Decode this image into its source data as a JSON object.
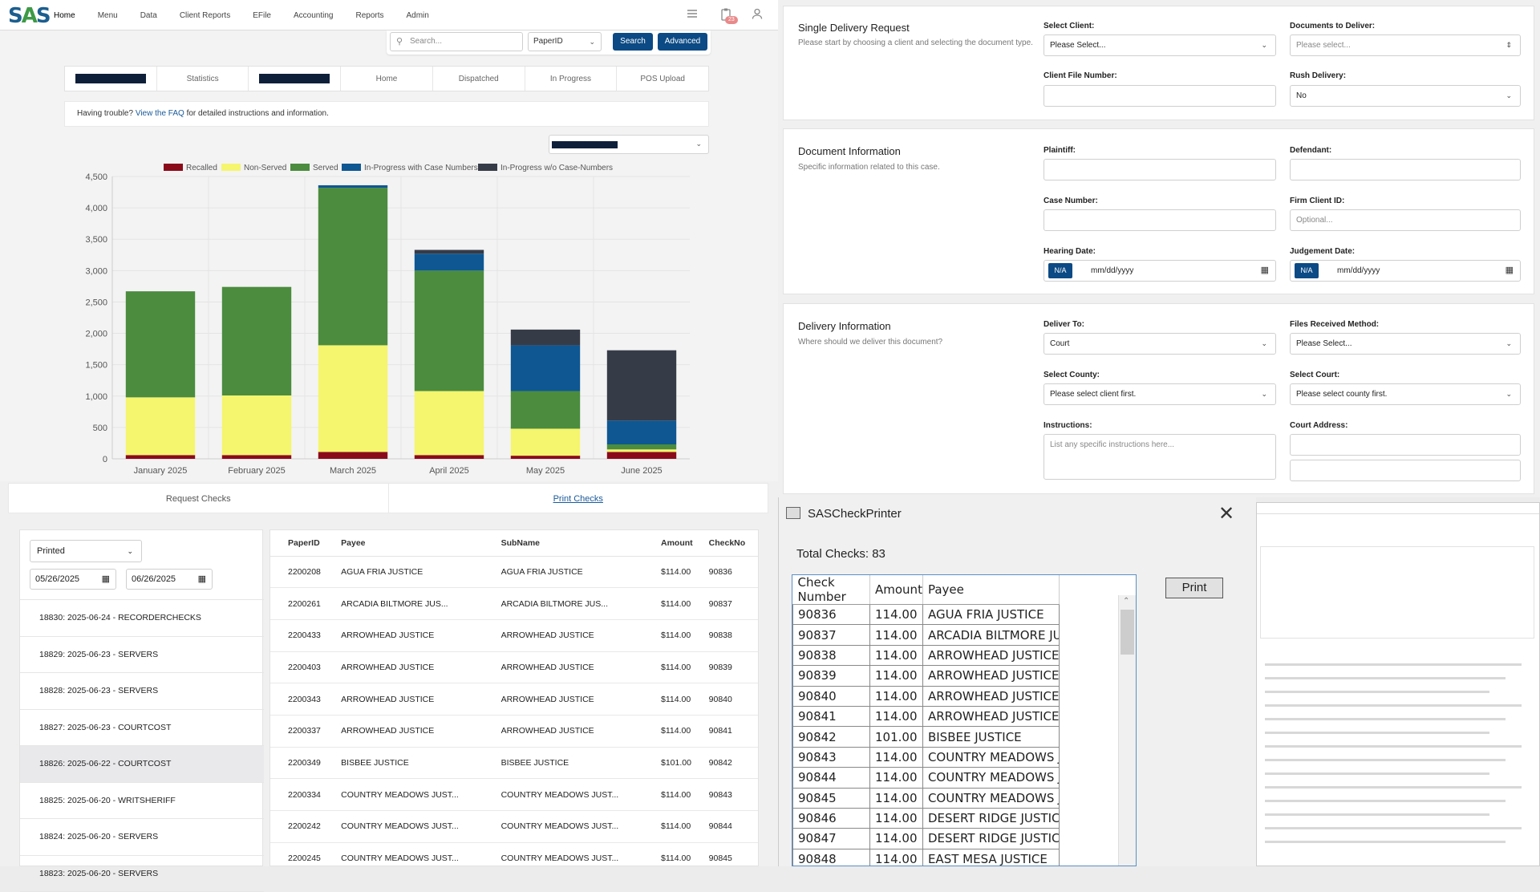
{
  "nav": {
    "logo_left": "S",
    "logo_mid": "A",
    "logo_right": "S",
    "items": [
      "Home",
      "Menu",
      "Data",
      "Client Reports",
      "EFile",
      "Accounting",
      "Reports",
      "Admin"
    ],
    "badge": "23"
  },
  "search": {
    "placeholder": "Search...",
    "field": "PaperID",
    "search_btn": "Search",
    "advanced_btn": "Advanced"
  },
  "tabs": [
    "Statistics",
    "Home",
    "Dispatched",
    "In Progress",
    "POS Upload"
  ],
  "help": {
    "prefix": "Having trouble?",
    "link": "View the FAQ",
    "suffix": "for detailed instructions and information."
  },
  "chart_data": {
    "type": "bar",
    "stacked": true,
    "categories": [
      "January 2025",
      "February 2025",
      "March 2025",
      "April 2025",
      "May 2025",
      "June 2025"
    ],
    "series": [
      {
        "name": "Recalled",
        "color": "#8b0a1a",
        "values": [
          60,
          60,
          110,
          60,
          50,
          110
        ]
      },
      {
        "name": "Non-Served",
        "color": "#f5f56e",
        "values": [
          920,
          950,
          1700,
          1020,
          430,
          40
        ]
      },
      {
        "name": "Served",
        "color": "#4b8c3e",
        "values": [
          1690,
          1730,
          2510,
          1920,
          600,
          80
        ]
      },
      {
        "name": "In-Progress with Case Numbers",
        "color": "#0e5793",
        "values": [
          0,
          0,
          40,
          270,
          730,
          380
        ]
      },
      {
        "name": "In-Progress w/o Case-Numbers",
        "color": "#363b48",
        "values": [
          0,
          0,
          0,
          60,
          250,
          1120
        ]
      }
    ],
    "yticks": [
      "0",
      "500",
      "1,000",
      "1,500",
      "2,000",
      "2,500",
      "3,000",
      "3,500",
      "4,000",
      "4,500"
    ],
    "ylim": [
      0,
      4500
    ],
    "legend": "top"
  },
  "check_tabs": {
    "request": "Request Checks",
    "print": "Print Checks"
  },
  "batch": {
    "filter": "Printed",
    "date_from": "05/26/2025",
    "date_to": "06/26/2025",
    "items": [
      "18830: 2025-06-24 - RECORDERCHECKS",
      "18829: 2025-06-23 - SERVERS",
      "18828: 2025-06-23 - SERVERS",
      "18827: 2025-06-23 - COURTCOST",
      "18826: 2025-06-22 - COURTCOST",
      "18825: 2025-06-20 - WRITSHERIFF",
      "18824: 2025-06-20 - SERVERS",
      "18823: 2025-06-20 - SERVERS"
    ]
  },
  "checks_table": {
    "headers": [
      "PaperID",
      "Payee",
      "SubName",
      "Amount",
      "CheckNo"
    ],
    "rows": [
      [
        "2200208",
        "AGUA FRIA JUSTICE",
        "AGUA FRIA JUSTICE",
        "$114.00",
        "90836"
      ],
      [
        "2200261",
        "ARCADIA BILTMORE JUS...",
        "ARCADIA BILTMORE JUS...",
        "$114.00",
        "90837"
      ],
      [
        "2200433",
        "ARROWHEAD JUSTICE",
        "ARROWHEAD JUSTICE",
        "$114.00",
        "90838"
      ],
      [
        "2200403",
        "ARROWHEAD JUSTICE",
        "ARROWHEAD JUSTICE",
        "$114.00",
        "90839"
      ],
      [
        "2200343",
        "ARROWHEAD JUSTICE",
        "ARROWHEAD JUSTICE",
        "$114.00",
        "90840"
      ],
      [
        "2200337",
        "ARROWHEAD JUSTICE",
        "ARROWHEAD JUSTICE",
        "$114.00",
        "90841"
      ],
      [
        "2200349",
        "BISBEE JUSTICE",
        "BISBEE JUSTICE",
        "$101.00",
        "90842"
      ],
      [
        "2200334",
        "COUNTRY MEADOWS JUST...",
        "COUNTRY MEADOWS JUST...",
        "$114.00",
        "90843"
      ],
      [
        "2200242",
        "COUNTRY MEADOWS JUST...",
        "COUNTRY MEADOWS JUST...",
        "$114.00",
        "90844"
      ],
      [
        "2200245",
        "COUNTRY MEADOWS JUST...",
        "COUNTRY MEADOWS JUST...",
        "$114.00",
        "90845"
      ]
    ]
  },
  "delivery": {
    "single": {
      "title": "Single Delivery Request",
      "subtitle": "Please start by choosing a client and selecting the document type.",
      "select_client_label": "Select Client:",
      "select_client_value": "Please Select...",
      "docs_label": "Documents to Deliver:",
      "docs_value": "Please select...",
      "file_no_label": "Client File Number:",
      "rush_label": "Rush Delivery:",
      "rush_value": "No"
    },
    "document": {
      "title": "Document Information",
      "subtitle": "Specific information related to this case.",
      "plaintiff_label": "Plaintiff:",
      "defendant_label": "Defendant:",
      "case_label": "Case Number:",
      "firm_label": "Firm Client ID:",
      "firm_placeholder": "Optional...",
      "hearing_label": "Hearing Date:",
      "judgement_label": "Judgement Date:",
      "na": "N/A",
      "date_placeholder": "mm/dd/yyyy"
    },
    "info": {
      "title": "Delivery Information",
      "subtitle": "Where should we deliver this document?",
      "deliver_to_label": "Deliver To:",
      "deliver_to_value": "Court",
      "files_label": "Files Received Method:",
      "files_value": "Please Select...",
      "county_label": "Select County:",
      "county_value": "Please select client first.",
      "court_label": "Select Court:",
      "court_value": "Please select county first.",
      "instructions_label": "Instructions:",
      "instructions_placeholder": "List any specific instructions here...",
      "address_label": "Court Address:"
    }
  },
  "printer": {
    "title": "SASCheckPrinter",
    "total": "Total Checks: 83",
    "print_btn": "Print",
    "headers": [
      "Check Number",
      "Amount",
      "Payee"
    ],
    "rows": [
      [
        "90836",
        "114.00",
        "AGUA FRIA JUSTICE"
      ],
      [
        "90837",
        "114.00",
        "ARCADIA BILTMORE JUSTICE"
      ],
      [
        "90838",
        "114.00",
        "ARROWHEAD JUSTICE"
      ],
      [
        "90839",
        "114.00",
        "ARROWHEAD JUSTICE"
      ],
      [
        "90840",
        "114.00",
        "ARROWHEAD JUSTICE"
      ],
      [
        "90841",
        "114.00",
        "ARROWHEAD JUSTICE"
      ],
      [
        "90842",
        "101.00",
        "BISBEE JUSTICE"
      ],
      [
        "90843",
        "114.00",
        "COUNTRY MEADOWS JUSTIC"
      ],
      [
        "90844",
        "114.00",
        "COUNTRY MEADOWS JUSTIC"
      ],
      [
        "90845",
        "114.00",
        "COUNTRY MEADOWS JUSTIC"
      ],
      [
        "90846",
        "114.00",
        "DESERT RIDGE JUSTICE"
      ],
      [
        "90847",
        "114.00",
        "DESERT RIDGE JUSTICE"
      ],
      [
        "90848",
        "114.00",
        "EAST MESA JUSTICE"
      ]
    ]
  }
}
